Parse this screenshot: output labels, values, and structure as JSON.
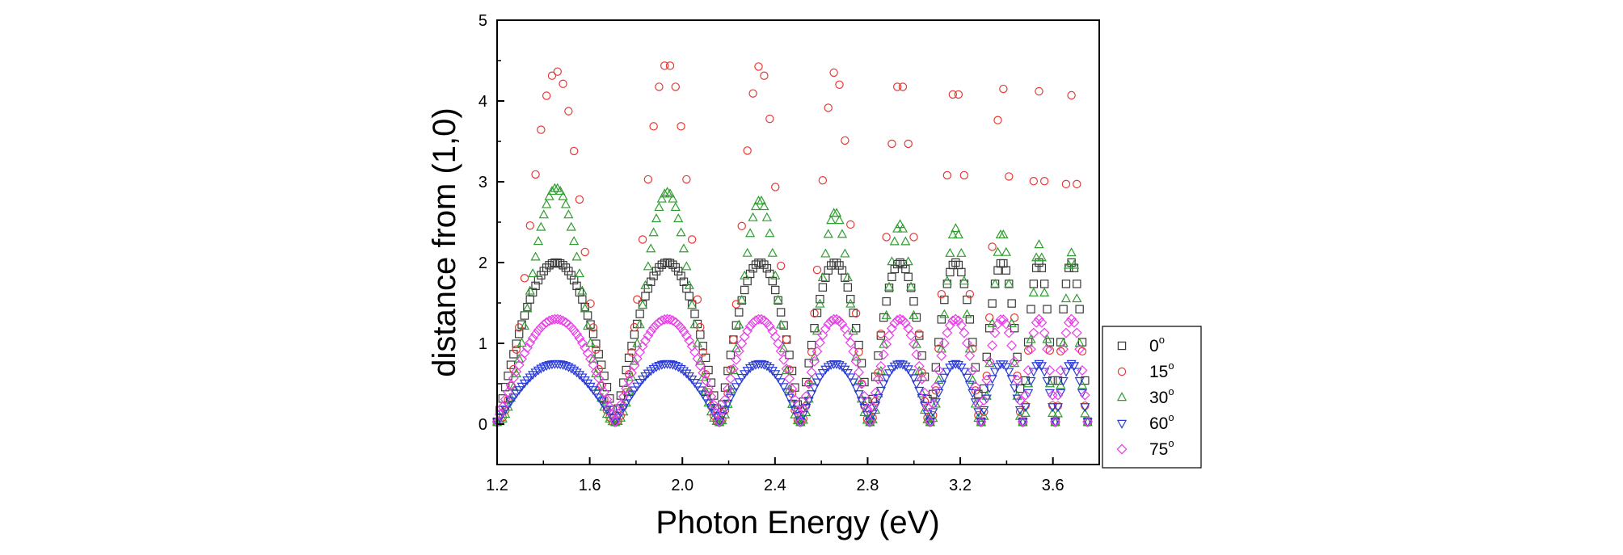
{
  "chart_data": {
    "type": "scatter",
    "title": "",
    "xlabel": "Photon Energy (eV)",
    "ylabel": "distance from (1,0)",
    "xlim": [
      1.2,
      3.8
    ],
    "ylim": [
      -0.5,
      5
    ],
    "xticks": [
      "1.2",
      "1.6",
      "2.0",
      "2.4",
      "2.8",
      "3.2",
      "3.6"
    ],
    "yticks": [
      "0",
      "1",
      "2",
      "3",
      "4",
      "5"
    ],
    "grid": false,
    "legend_position": "outside-right-bottom",
    "peak_energies": [
      1.48,
      1.95,
      2.35,
      2.68,
      2.95,
      3.19,
      3.38,
      3.54,
      3.68
    ],
    "null_energies": [
      1.2,
      1.71,
      2.16,
      2.51,
      2.81,
      3.07,
      3.29,
      3.47,
      3.61,
      3.75
    ],
    "series": [
      {
        "name": "0",
        "unit_sup": "o",
        "marker": "square",
        "color": "#3a3a3a",
        "peak_heights": [
          1.97,
          1.97,
          1.97,
          1.97,
          1.97,
          1.97,
          1.97,
          1.97,
          1.97
        ]
      },
      {
        "name": "15",
        "unit_sup": "o",
        "marker": "circle",
        "color": "#e53935",
        "peak_heights": [
          4.35,
          4.45,
          4.42,
          4.35,
          4.25,
          4.2,
          4.18,
          4.1,
          4.05
        ]
      },
      {
        "name": "30",
        "unit_sup": "o",
        "marker": "triangle-up",
        "color": "#2e9e2e",
        "peak_heights": [
          2.9,
          2.85,
          2.75,
          2.6,
          2.45,
          2.4,
          2.35,
          2.2,
          2.1
        ]
      },
      {
        "name": "60",
        "unit_sup": "o",
        "marker": "triangle-down",
        "color": "#2a3bd4",
        "peak_heights": [
          0.72,
          0.72,
          0.72,
          0.72,
          0.72,
          0.72,
          0.72,
          0.72,
          0.72
        ]
      },
      {
        "name": "75",
        "unit_sup": "o",
        "marker": "diamond",
        "color": "#e83ee8",
        "peak_heights": [
          1.27,
          1.27,
          1.27,
          1.27,
          1.27,
          1.27,
          1.27,
          1.27,
          1.27
        ]
      }
    ]
  }
}
